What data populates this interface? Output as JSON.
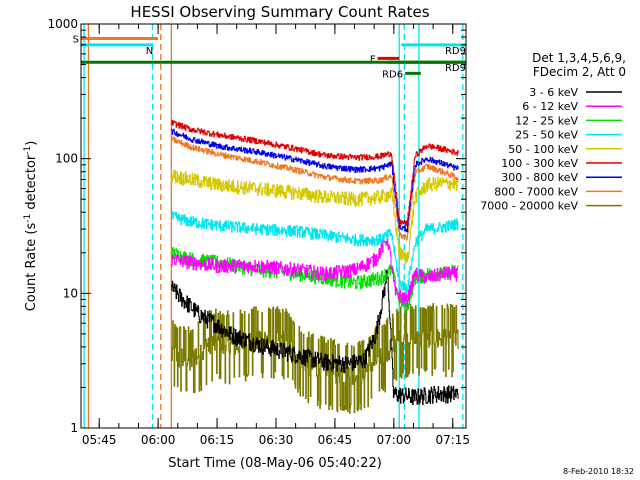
{
  "chart_data": {
    "type": "line",
    "title": "HESSI Observing Summary Count Rates",
    "xlabel": "Start Time (08-May-06 05:40:22)",
    "ylabel_main": "Count Rate (s",
    "ylabel_sup1": "-1",
    "ylabel_mid": " detector",
    "ylabel_sup2": "-1",
    "ylabel_end": ")",
    "y_scale": "log",
    "ylim": [
      1,
      1000
    ],
    "xlim_minutes": [
      0,
      98
    ],
    "x_ticks": [
      {
        "label": "05:45",
        "minute": 4.63
      },
      {
        "label": "06:00",
        "minute": 19.63
      },
      {
        "label": "06:15",
        "minute": 34.63
      },
      {
        "label": "06:30",
        "minute": 49.63
      },
      {
        "label": "06:45",
        "minute": 64.63
      },
      {
        "label": "07:00",
        "minute": 79.63
      },
      {
        "label": "07:15",
        "minute": 94.63
      }
    ],
    "y_ticks": [
      {
        "label": "1",
        "value": 1
      },
      {
        "label": "10",
        "value": 10
      },
      {
        "label": "100",
        "value": 100
      },
      {
        "label": "1000",
        "value": 1000
      }
    ],
    "legend_header": [
      "Det 1,3,4,5,6,9,",
      "FDecim 2, Att 0"
    ],
    "legend_position": "right",
    "series": [
      {
        "name": "3 - 6 keV",
        "color": "#000000",
        "key": "s0"
      },
      {
        "name": "6 - 12 keV",
        "color": "#ff00ff",
        "key": "s1"
      },
      {
        "name": "12 - 25 keV",
        "color": "#00e000",
        "key": "s2"
      },
      {
        "name": "25 - 50 keV",
        "color": "#00e5ee",
        "key": "s3"
      },
      {
        "name": "50 - 100 keV",
        "color": "#d4c800",
        "key": "s4"
      },
      {
        "name": "100 - 300 keV",
        "color": "#e00000",
        "key": "s5"
      },
      {
        "name": "300 - 800 keV",
        "color": "#0000ee",
        "key": "s6"
      },
      {
        "name": "800 - 7000 keV",
        "color": "#ee7722",
        "key": "s7"
      },
      {
        "name": "7000 - 20000 keV",
        "color": "#7a7a00",
        "key": "s8"
      }
    ],
    "series_points": {
      "s5": [
        [
          23,
          185
        ],
        [
          28,
          165
        ],
        [
          35,
          150
        ],
        [
          45,
          135
        ],
        [
          55,
          118
        ],
        [
          62,
          106
        ],
        [
          70,
          102
        ],
        [
          76,
          104
        ],
        [
          79,
          110
        ],
        [
          81,
          34
        ],
        [
          83,
          33
        ],
        [
          85,
          105
        ],
        [
          88,
          125
        ],
        [
          92,
          118
        ],
        [
          96,
          110
        ]
      ],
      "s6": [
        [
          23,
          160
        ],
        [
          28,
          140
        ],
        [
          35,
          124
        ],
        [
          45,
          112
        ],
        [
          55,
          98
        ],
        [
          62,
          88
        ],
        [
          70,
          83
        ],
        [
          76,
          85
        ],
        [
          79,
          92
        ],
        [
          81,
          31
        ],
        [
          83,
          30
        ],
        [
          85,
          90
        ],
        [
          88,
          100
        ],
        [
          92,
          92
        ],
        [
          96,
          84
        ]
      ],
      "s7": [
        [
          23,
          140
        ],
        [
          28,
          122
        ],
        [
          35,
          108
        ],
        [
          45,
          95
        ],
        [
          55,
          82
        ],
        [
          62,
          73
        ],
        [
          70,
          68
        ],
        [
          76,
          69
        ],
        [
          79,
          75
        ],
        [
          81,
          27
        ],
        [
          83,
          26
        ],
        [
          85,
          78
        ],
        [
          88,
          88
        ],
        [
          92,
          80
        ],
        [
          96,
          72
        ]
      ],
      "s4": [
        [
          23,
          75
        ],
        [
          28,
          70
        ],
        [
          35,
          64
        ],
        [
          45,
          60
        ],
        [
          55,
          56
        ],
        [
          62,
          52
        ],
        [
          70,
          50
        ],
        [
          76,
          52
        ],
        [
          79,
          55
        ],
        [
          81,
          20
        ],
        [
          83,
          18
        ],
        [
          85,
          52
        ],
        [
          88,
          64
        ],
        [
          92,
          66
        ],
        [
          96,
          65
        ]
      ],
      "s3": [
        [
          23,
          37
        ],
        [
          28,
          34
        ],
        [
          35,
          32
        ],
        [
          45,
          30
        ],
        [
          55,
          29
        ],
        [
          62,
          27
        ],
        [
          70,
          25
        ],
        [
          76,
          25
        ],
        [
          79,
          28
        ],
        [
          81,
          12
        ],
        [
          83,
          11
        ],
        [
          85,
          24
        ],
        [
          88,
          30
        ],
        [
          92,
          31
        ],
        [
          96,
          33
        ]
      ],
      "s1": [
        [
          23,
          18
        ],
        [
          28,
          17
        ],
        [
          35,
          16
        ],
        [
          45,
          16
        ],
        [
          55,
          15
        ],
        [
          62,
          14
        ],
        [
          70,
          15
        ],
        [
          75,
          18
        ],
        [
          78,
          26
        ],
        [
          80,
          10
        ],
        [
          83,
          9
        ],
        [
          85,
          14
        ],
        [
          88,
          13
        ],
        [
          92,
          14
        ],
        [
          96,
          14
        ]
      ],
      "s2": [
        [
          23,
          20
        ],
        [
          28,
          18
        ],
        [
          35,
          17
        ],
        [
          45,
          15
        ],
        [
          55,
          14
        ],
        [
          62,
          13
        ],
        [
          70,
          12
        ],
        [
          76,
          13
        ],
        [
          79,
          15
        ],
        [
          81,
          9
        ],
        [
          83,
          8
        ],
        [
          85,
          13
        ],
        [
          88,
          14
        ],
        [
          92,
          14
        ],
        [
          96,
          15
        ]
      ],
      "s0": [
        [
          23,
          11
        ],
        [
          26,
          9
        ],
        [
          30,
          7
        ],
        [
          34,
          6
        ],
        [
          38,
          5
        ],
        [
          45,
          4.2
        ],
        [
          55,
          3.5
        ],
        [
          62,
          3.1
        ],
        [
          68,
          3
        ],
        [
          72,
          3.2
        ],
        [
          75,
          5
        ],
        [
          77,
          10
        ],
        [
          78,
          15
        ],
        [
          79.5,
          1.8
        ],
        [
          85,
          1.7
        ],
        [
          90,
          1.8
        ],
        [
          96,
          1.8
        ]
      ],
      "s8": [
        [
          23,
          3.6
        ],
        [
          28,
          3.2
        ],
        [
          33,
          4.4
        ],
        [
          38,
          4.2
        ],
        [
          45,
          4.6
        ],
        [
          52,
          4.5
        ],
        [
          57,
          3.0
        ],
        [
          62,
          2.7
        ],
        [
          67,
          2.5
        ],
        [
          72,
          2.6
        ],
        [
          76,
          3.4
        ],
        [
          78,
          3.8
        ],
        [
          81,
          4.6
        ],
        [
          85,
          4.8
        ],
        [
          90,
          4.8
        ],
        [
          96,
          4.7
        ]
      ]
    },
    "noise_fraction": {
      "s5": 0.05,
      "s6": 0.05,
      "s7": 0.05,
      "s4": 0.12,
      "s3": 0.1,
      "s1": 0.12,
      "s2": 0.12,
      "s0": 0.15,
      "s8": 0.3
    },
    "data_start_minute": 23,
    "annotations": {
      "flags": [
        {
          "label": "S",
          "color": "#ee7722",
          "value": 780,
          "x_start": 0,
          "x_end": 19.6,
          "label_side": "left"
        },
        {
          "label": "N",
          "color": "#00e5ee",
          "value": 700,
          "x_start": 0,
          "x_end": 18.4,
          "label_side": "right"
        },
        {
          "label": "RD9",
          "color": "#00e5ee",
          "value": 700,
          "x_start": 81.6,
          "x_end": 98,
          "label_side": "right"
        },
        {
          "label": "F",
          "color": "#e00000",
          "value": 555,
          "x_start": 75.5,
          "x_end": 81,
          "label_side": "left"
        },
        {
          "label": "RD9",
          "color": "#007700",
          "value": 520,
          "x_start": 78,
          "x_end": 98,
          "label_side": "right"
        },
        {
          "label": "RD6",
          "color": "#007700",
          "value": 430,
          "x_start": 82.5,
          "x_end": 86.5,
          "label_side": "left"
        }
      ],
      "vlines_solid": [
        {
          "minute": 0.8,
          "color": "#00e5ee"
        },
        {
          "minute": 1.9,
          "color": "#ee7722"
        },
        {
          "minute": 23.0,
          "color": "#ee7722"
        },
        {
          "minute": 81.0,
          "color": "#00e5ee"
        },
        {
          "minute": 86.0,
          "color": "#00e5ee"
        }
      ],
      "vlines_dashed": [
        {
          "minute": 18.2,
          "color": "#00e5ee"
        },
        {
          "minute": 20.3,
          "color": "#ee7722"
        },
        {
          "minute": 82.3,
          "color": "#00e5ee"
        },
        {
          "minute": 97.2,
          "color": "#00e5ee"
        }
      ]
    },
    "timestamp": "8-Feb-2010 18:32"
  }
}
